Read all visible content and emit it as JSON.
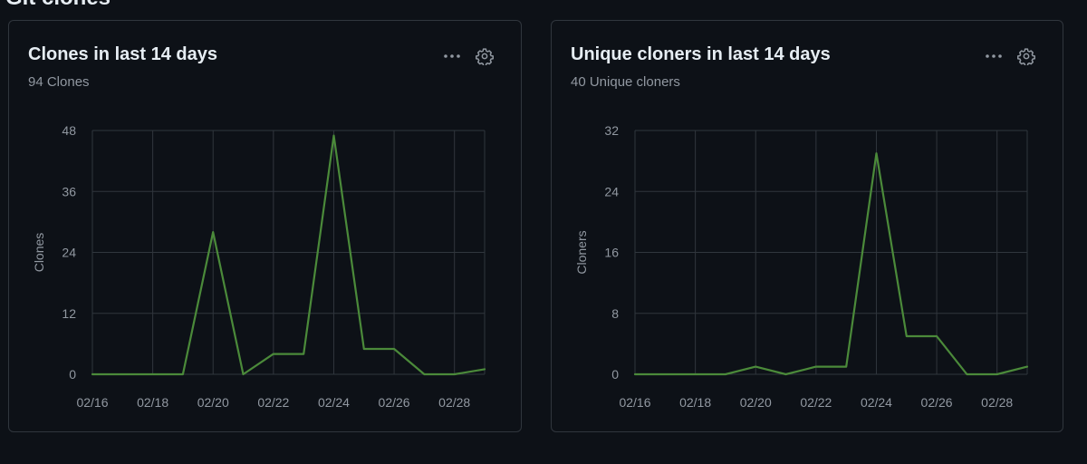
{
  "page": {
    "section_heading": "Git clones"
  },
  "charts": [
    {
      "id": "clones",
      "title": "Clones in last 14 days",
      "subtitle": "94 Clones",
      "more_icon": "kebab-horizontal-icon",
      "settings_icon": "gear-icon"
    },
    {
      "id": "unique",
      "title": "Unique cloners in last 14 days",
      "subtitle": "40 Unique cloners",
      "more_icon": "kebab-horizontal-icon",
      "settings_icon": "gear-icon"
    }
  ],
  "colors": {
    "line": "#4b8a3a",
    "grid": "#30363d",
    "axis_text": "#9198a1"
  },
  "chart_data": [
    {
      "type": "line",
      "title": "Clones in last 14 days",
      "ylabel": "Clones",
      "xlabel": "",
      "ylim": [
        0,
        48
      ],
      "yticks": [
        0,
        12,
        24,
        36,
        48
      ],
      "x_range": [
        "02/16",
        "03/01"
      ],
      "xticks": [
        "02/16",
        "02/18",
        "02/20",
        "02/22",
        "02/24",
        "02/26",
        "02/28"
      ],
      "grid": true,
      "series": [
        {
          "x": [
            "02/16",
            "02/17",
            "02/18",
            "02/19",
            "02/20",
            "02/21",
            "02/22",
            "02/23",
            "02/24",
            "02/25",
            "02/26",
            "02/27",
            "02/28",
            "03/01"
          ],
          "values": [
            0,
            0,
            0,
            0,
            28,
            0,
            4,
            4,
            47,
            5,
            5,
            0,
            0,
            1
          ]
        }
      ]
    },
    {
      "type": "line",
      "title": "Unique cloners in last 14 days",
      "ylabel": "Cloners",
      "xlabel": "",
      "ylim": [
        0,
        32
      ],
      "yticks": [
        0,
        8,
        16,
        24,
        32
      ],
      "x_range": [
        "02/16",
        "03/01"
      ],
      "xticks": [
        "02/16",
        "02/18",
        "02/20",
        "02/22",
        "02/24",
        "02/26",
        "02/28"
      ],
      "grid": true,
      "series": [
        {
          "x": [
            "02/16",
            "02/17",
            "02/18",
            "02/19",
            "02/20",
            "02/21",
            "02/22",
            "02/23",
            "02/24",
            "02/25",
            "02/26",
            "02/27",
            "02/28",
            "03/01"
          ],
          "values": [
            0,
            0,
            0,
            0,
            1,
            0,
            1,
            1,
            29,
            5,
            5,
            0,
            0,
            1
          ]
        }
      ]
    }
  ]
}
